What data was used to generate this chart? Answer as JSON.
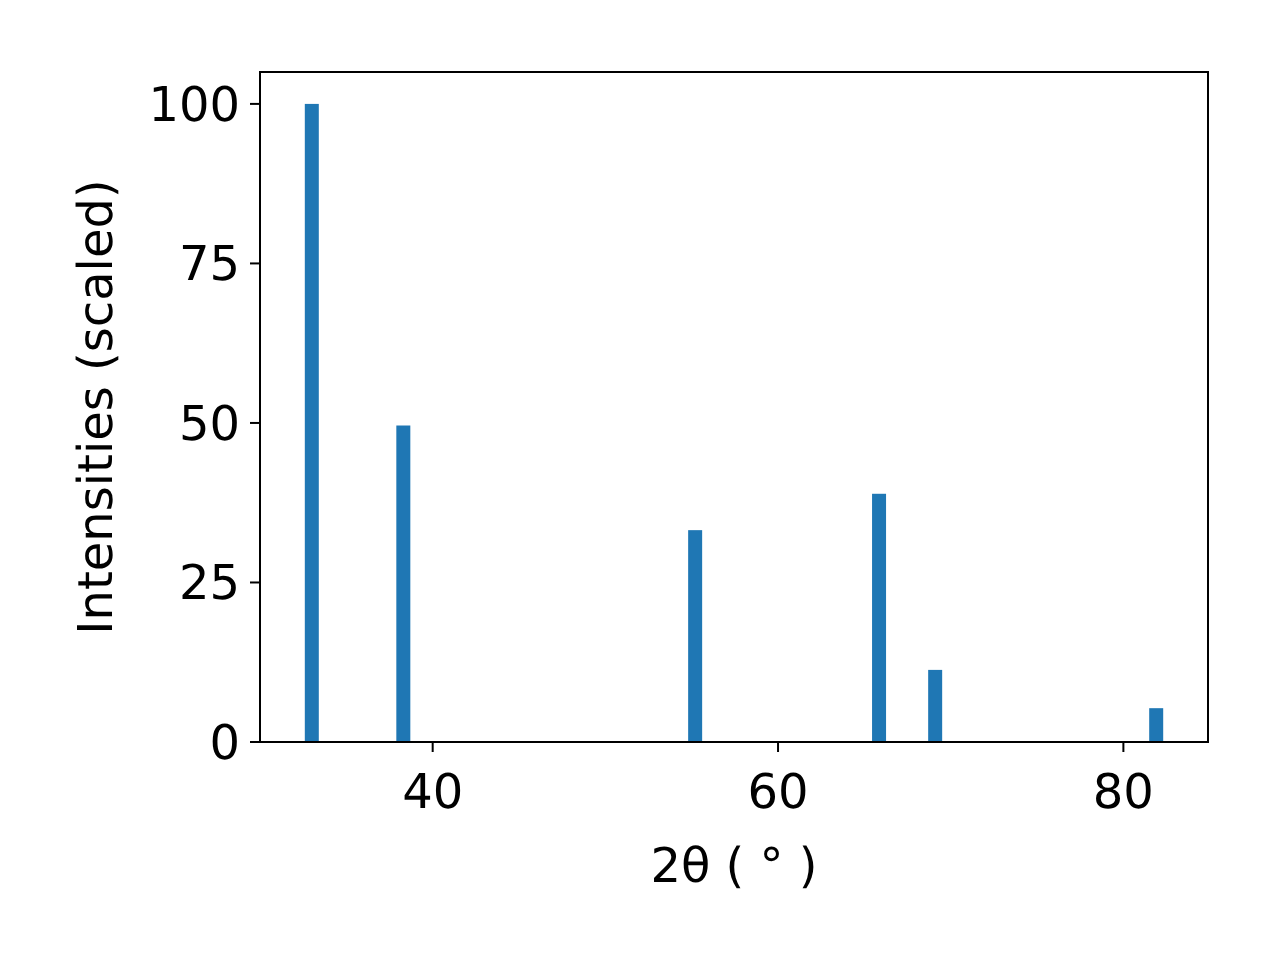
{
  "chart_data": {
    "type": "bar",
    "xlabel": "2θ ( ° )",
    "ylabel": "Intensities (scaled)",
    "x": [
      33.0,
      38.3,
      55.2,
      65.85,
      69.1,
      81.9
    ],
    "values": [
      100,
      49.6,
      33.2,
      38.9,
      11.3,
      5.3
    ],
    "color": "#1f77b4",
    "xlim": [
      30,
      84.9
    ],
    "xticks": [
      40,
      60,
      80
    ],
    "ylim": [
      0,
      105
    ],
    "yticks": [
      0,
      25,
      50,
      75,
      100
    ],
    "grid": false
  }
}
